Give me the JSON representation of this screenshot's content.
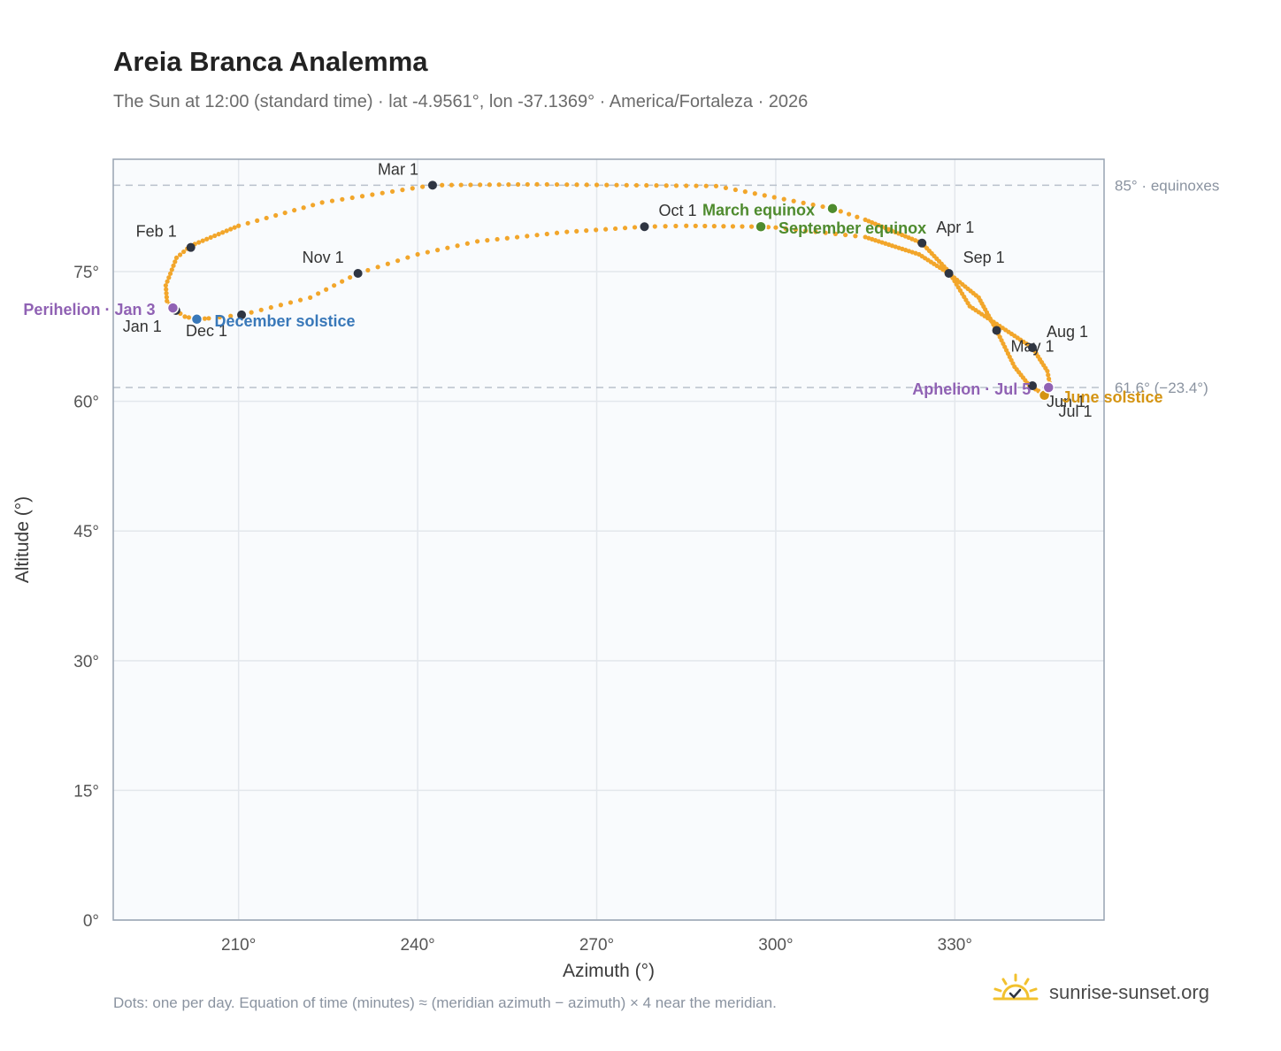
{
  "title": "Areia Branca Analemma",
  "subtitle": "The Sun at 12:00 (standard time) · lat -4.9561°, lon -37.1369° · America/Fortaleza · 2026",
  "footnote": "Dots: one per day. Equation of time (minutes) ≈ (meridian azimuth − azimuth) × 4 near the meridian.",
  "brand": {
    "name": "sunrise-sunset.org",
    "icon": "sun-logo-icon"
  },
  "colors": {
    "path": "#f2a62b",
    "month": "#2f3542",
    "equinox": "#4e8b2e",
    "december": "#3978b9",
    "june": "#d49413",
    "apsis": "#9062b4",
    "refline": "#b9c1cc",
    "grid": "#e3e7ec",
    "plot_bg": "#f9fbfd",
    "frame": "#97a3b2"
  },
  "chart_data": {
    "type": "scatter",
    "title": "Areia Branca Analemma",
    "xlabel": "Azimuth (°)",
    "ylabel": "Altitude (°)",
    "xlim": [
      189,
      355
    ],
    "ylim": [
      0,
      88
    ],
    "xticks": [
      210,
      240,
      270,
      300,
      330
    ],
    "xtick_labels": [
      "210°",
      "240°",
      "270°",
      "300°",
      "330°"
    ],
    "yticks": [
      0,
      15,
      30,
      45,
      60,
      75
    ],
    "ytick_labels": [
      "0°",
      "15°",
      "30°",
      "45°",
      "60°",
      "75°"
    ],
    "grid": true,
    "reference_lines": [
      {
        "y": 85.0,
        "label": "85° · equinoxes"
      },
      {
        "y": 61.6,
        "label": "61.6° (−23.4°)"
      }
    ],
    "analemma_path": [
      [
        199.5,
        70.5
      ],
      [
        198.0,
        71.6
      ],
      [
        197.8,
        73.4
      ],
      [
        199.6,
        76.6
      ],
      [
        202.0,
        78.0
      ],
      [
        210.0,
        80.3
      ],
      [
        224.0,
        83.0
      ],
      [
        242.5,
        85.0
      ],
      [
        260.0,
        85.1
      ],
      [
        290.0,
        84.9
      ],
      [
        309.5,
        82.3
      ],
      [
        315.0,
        81.0
      ],
      [
        324.5,
        78.3
      ],
      [
        329.0,
        75.0
      ],
      [
        332.5,
        71.0
      ],
      [
        343.0,
        66.2
      ],
      [
        345.5,
        63.5
      ],
      [
        346.0,
        61.7
      ],
      [
        345.0,
        60.7
      ],
      [
        344.0,
        61.2
      ],
      [
        342.5,
        61.8
      ],
      [
        340.0,
        64.0
      ],
      [
        337.0,
        68.2
      ],
      [
        334.0,
        72.0
      ],
      [
        329.0,
        74.8
      ],
      [
        324.0,
        77.0
      ],
      [
        315.0,
        79.0
      ],
      [
        300.0,
        80.1
      ],
      [
        297.5,
        80.2
      ],
      [
        285.0,
        80.3
      ],
      [
        278.0,
        80.2
      ],
      [
        265.0,
        79.6
      ],
      [
        250.0,
        78.5
      ],
      [
        240.0,
        77.0
      ],
      [
        230.0,
        74.8
      ],
      [
        222.0,
        72.0
      ],
      [
        210.5,
        70.0
      ],
      [
        205.0,
        69.6
      ],
      [
        203.0,
        69.5
      ],
      [
        201.0,
        69.8
      ],
      [
        199.5,
        70.5
      ]
    ],
    "month_markers": [
      {
        "label": "Jan 1",
        "azimuth": 199.5,
        "altitude": 70.5,
        "label_pos": "below-left"
      },
      {
        "label": "Feb 1",
        "azimuth": 202.0,
        "altitude": 77.8,
        "label_pos": "above-left"
      },
      {
        "label": "Mar 1",
        "azimuth": 242.5,
        "altitude": 85.0,
        "label_pos": "above-left"
      },
      {
        "label": "Apr 1",
        "azimuth": 324.5,
        "altitude": 78.3,
        "label_pos": "above-right"
      },
      {
        "label": "May 1",
        "azimuth": 337.0,
        "altitude": 68.2,
        "label_pos": "below-right"
      },
      {
        "label": "Jun 1",
        "azimuth": 343.0,
        "altitude": 61.8,
        "label_pos": "below-right"
      },
      {
        "label": "Jul 1",
        "azimuth": 345.0,
        "altitude": 60.7,
        "label_pos": "below-right"
      },
      {
        "label": "Aug 1",
        "azimuth": 343.0,
        "altitude": 66.2,
        "label_pos": "above-right"
      },
      {
        "label": "Sep 1",
        "azimuth": 329.0,
        "altitude": 74.8,
        "label_pos": "above-right"
      },
      {
        "label": "Oct 1",
        "azimuth": 278.0,
        "altitude": 80.2,
        "label_pos": "above-right"
      },
      {
        "label": "Nov 1",
        "azimuth": 230.0,
        "altitude": 74.8,
        "label_pos": "above-left"
      },
      {
        "label": "Dec 1",
        "azimuth": 210.5,
        "altitude": 70.0,
        "label_pos": "below-left"
      }
    ],
    "events": [
      {
        "label": "March equinox",
        "azimuth": 309.5,
        "altitude": 82.3,
        "kind": "equinox",
        "label_pos": "left"
      },
      {
        "label": "September equinox",
        "azimuth": 297.5,
        "altitude": 80.2,
        "kind": "equinox",
        "label_pos": "right"
      },
      {
        "label": "December solstice",
        "azimuth": 203.0,
        "altitude": 69.5,
        "kind": "december",
        "label_pos": "right"
      },
      {
        "label": "June solstice",
        "azimuth": 345.0,
        "altitude": 60.7,
        "kind": "june",
        "label_pos": "right"
      },
      {
        "label": "Perihelion · Jan 3",
        "azimuth": 199.0,
        "altitude": 70.8,
        "kind": "apsis",
        "label_pos": "left"
      },
      {
        "label": "Aphelion · Jul 5",
        "azimuth": 345.7,
        "altitude": 61.6,
        "kind": "apsis",
        "label_pos": "left"
      }
    ]
  }
}
